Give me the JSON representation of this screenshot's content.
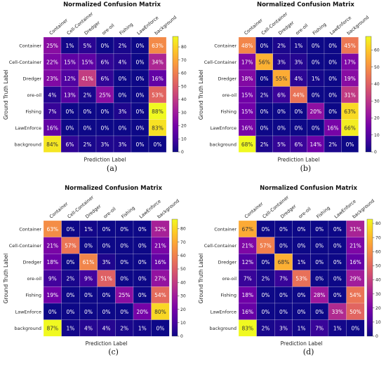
{
  "colorscale": {
    "name": "plasma",
    "stops": [
      "#0d0887",
      "#46039f",
      "#7201a8",
      "#9c179e",
      "#bd3786",
      "#d8576b",
      "#ed7953",
      "#fb9f3a",
      "#fdca26",
      "#f0f921"
    ]
  },
  "chart_data": [
    {
      "type": "heatmap",
      "title": "Normalized Confusion Matrix",
      "xlabel": "Prediction Label",
      "ylabel": "Ground Truth Label",
      "caption": "(a)",
      "classes": [
        "Container",
        "Cell-Container",
        "Dredger",
        "ore-oil",
        "Fishing",
        "LawEnforce",
        "background"
      ],
      "values": [
        [
          25,
          1,
          5,
          0,
          2,
          0,
          63
        ],
        [
          22,
          15,
          15,
          6,
          4,
          0,
          34
        ],
        [
          23,
          12,
          41,
          6,
          0,
          0,
          16
        ],
        [
          4,
          13,
          2,
          25,
          0,
          0,
          53
        ],
        [
          7,
          0,
          0,
          0,
          3,
          0,
          88
        ],
        [
          16,
          0,
          0,
          0,
          0,
          0,
          83
        ],
        [
          84,
          6,
          2,
          3,
          3,
          0,
          0
        ]
      ],
      "cell_labels": [
        [
          "25%",
          "1%",
          "5%",
          "0%",
          "2%",
          "0%",
          "63%"
        ],
        [
          "22%",
          "15%",
          "15%",
          "6%",
          "4%",
          "0%",
          "34%"
        ],
        [
          "23%",
          "12%",
          "41%",
          "6%",
          "0%",
          "0%",
          "16%"
        ],
        [
          "4%",
          "13%",
          "2%",
          "25%",
          "0%",
          "0%",
          "53%"
        ],
        [
          "7%",
          "0%",
          "0%",
          "0%",
          "3%",
          "0%",
          "88%"
        ],
        [
          "16%",
          "0%",
          "0%",
          "0%",
          "0%",
          "0%",
          "83%"
        ],
        [
          "84%",
          "6%",
          "2%",
          "3%",
          "3%",
          "0%",
          "0%"
        ]
      ],
      "colorbar_ticks": [
        "0",
        "10",
        "20",
        "30",
        "40",
        "50",
        "60",
        "70",
        "80"
      ],
      "vmax": 88
    },
    {
      "type": "heatmap",
      "title": "Normalized Confusion Matrix",
      "xlabel": "Prediction Label",
      "ylabel": "Ground Truth Label",
      "caption": "(b)",
      "classes": [
        "Container",
        "Cell-Container",
        "Dredger",
        "ore-oil",
        "Fishing",
        "LawEnforce",
        "background"
      ],
      "values": [
        [
          48,
          0,
          2,
          1,
          0,
          0,
          45
        ],
        [
          17,
          56,
          3,
          3,
          0,
          0,
          17
        ],
        [
          18,
          0,
          55,
          4,
          1,
          0,
          19
        ],
        [
          15,
          2,
          6,
          44,
          0,
          0,
          31
        ],
        [
          15,
          0,
          0,
          0,
          20,
          0,
          63
        ],
        [
          16,
          0,
          0,
          0,
          0,
          16,
          66
        ],
        [
          68,
          2,
          5,
          6,
          14,
          2,
          0
        ]
      ],
      "cell_labels": [
        [
          "48%",
          "0%",
          "2%",
          "1%",
          "0%",
          "0%",
          "45%"
        ],
        [
          "17%",
          "56%",
          "3%",
          "3%",
          "0%",
          "0%",
          "17%"
        ],
        [
          "18%",
          "0%",
          "55%",
          "4%",
          "1%",
          "0%",
          "19%"
        ],
        [
          "15%",
          "2%",
          "6%",
          "44%",
          "0%",
          "0%",
          "31%"
        ],
        [
          "15%",
          "0%",
          "0%",
          "0%",
          "20%",
          "0%",
          "63%"
        ],
        [
          "16%",
          "0%",
          "0%",
          "0%",
          "0%",
          "16%",
          "66%"
        ],
        [
          "68%",
          "2%",
          "5%",
          "6%",
          "14%",
          "2%",
          "0%"
        ]
      ],
      "colorbar_ticks": [
        "0",
        "10",
        "20",
        "30",
        "40",
        "50",
        "60"
      ],
      "vmax": 68
    },
    {
      "type": "heatmap",
      "title": "Normalized Confusion Matrix",
      "xlabel": "Prediction Label",
      "ylabel": "Ground Truth Label",
      "caption": "(c)",
      "classes": [
        "Container",
        "Cell-Container",
        "Dredger",
        "ore-oil",
        "Fishing",
        "LawEnforce",
        "background"
      ],
      "values": [
        [
          63,
          0,
          1,
          0,
          0,
          0,
          32
        ],
        [
          21,
          57,
          0,
          0,
          0,
          0,
          21
        ],
        [
          18,
          0,
          61,
          3,
          0,
          0,
          16
        ],
        [
          9,
          2,
          9,
          51,
          0,
          0,
          27
        ],
        [
          19,
          0,
          0,
          0,
          25,
          0,
          54
        ],
        [
          0,
          0,
          0,
          0,
          0,
          20,
          80
        ],
        [
          87,
          1,
          4,
          4,
          2,
          1,
          0
        ]
      ],
      "cell_labels": [
        [
          "63%",
          "0%",
          "1%",
          "0%",
          "0%",
          "0%",
          "32%"
        ],
        [
          "21%",
          "57%",
          "0%",
          "0%",
          "0%",
          "0%",
          "21%"
        ],
        [
          "18%",
          "0%",
          "61%",
          "3%",
          "0%",
          "0%",
          "16%"
        ],
        [
          "9%",
          "2%",
          "9%",
          "51%",
          "0%",
          "0%",
          "27%"
        ],
        [
          "19%",
          "0%",
          "0%",
          "0%",
          "25%",
          "0%",
          "54%"
        ],
        [
          "0%",
          "0%",
          "0%",
          "0%",
          "0%",
          "20%",
          "80%"
        ],
        [
          "87%",
          "1%",
          "4%",
          "4%",
          "2%",
          "1%",
          "0%"
        ]
      ],
      "colorbar_ticks": [
        "0",
        "10",
        "20",
        "30",
        "40",
        "50",
        "60",
        "70",
        "80"
      ],
      "vmax": 87
    },
    {
      "type": "heatmap",
      "title": "Normalized Confusion Matrix",
      "xlabel": "Prediction Label",
      "ylabel": "Ground Truth Label",
      "caption": "(d)",
      "classes": [
        "Container",
        "Cell-Container",
        "Dredger",
        "ore-oil",
        "Fishing",
        "LawEnforce",
        "background"
      ],
      "values": [
        [
          67,
          0,
          0,
          0,
          0,
          0,
          31
        ],
        [
          21,
          57,
          0,
          0,
          0,
          0,
          21
        ],
        [
          12,
          0,
          68,
          1,
          0,
          0,
          16
        ],
        [
          7,
          2,
          7,
          53,
          0,
          0,
          29
        ],
        [
          18,
          0,
          0,
          0,
          28,
          0,
          54
        ],
        [
          16,
          0,
          0,
          0,
          0,
          33,
          50
        ],
        [
          83,
          2,
          3,
          1,
          7,
          1,
          0
        ]
      ],
      "cell_labels": [
        [
          "67%",
          "0%",
          "0%",
          "0%",
          "0%",
          "0%",
          "31%"
        ],
        [
          "21%",
          "57%",
          "0%",
          "0%",
          "0%",
          "0%",
          "21%"
        ],
        [
          "12%",
          "0%",
          "68%",
          "1%",
          "0%",
          "0%",
          "16%"
        ],
        [
          "7%",
          "2%",
          "7%",
          "53%",
          "0%",
          "0%",
          "29%"
        ],
        [
          "18%",
          "0%",
          "0%",
          "0%",
          "28%",
          "0%",
          "54%"
        ],
        [
          "16%",
          "0%",
          "0%",
          "0%",
          "0%",
          "33%",
          "50%"
        ],
        [
          "83%",
          "2%",
          "3%",
          "1%",
          "7%",
          "1%",
          "0%"
        ]
      ],
      "colorbar_ticks": [
        "0",
        "10",
        "20",
        "30",
        "40",
        "50",
        "60",
        "70",
        "80"
      ],
      "vmax": 83
    }
  ]
}
